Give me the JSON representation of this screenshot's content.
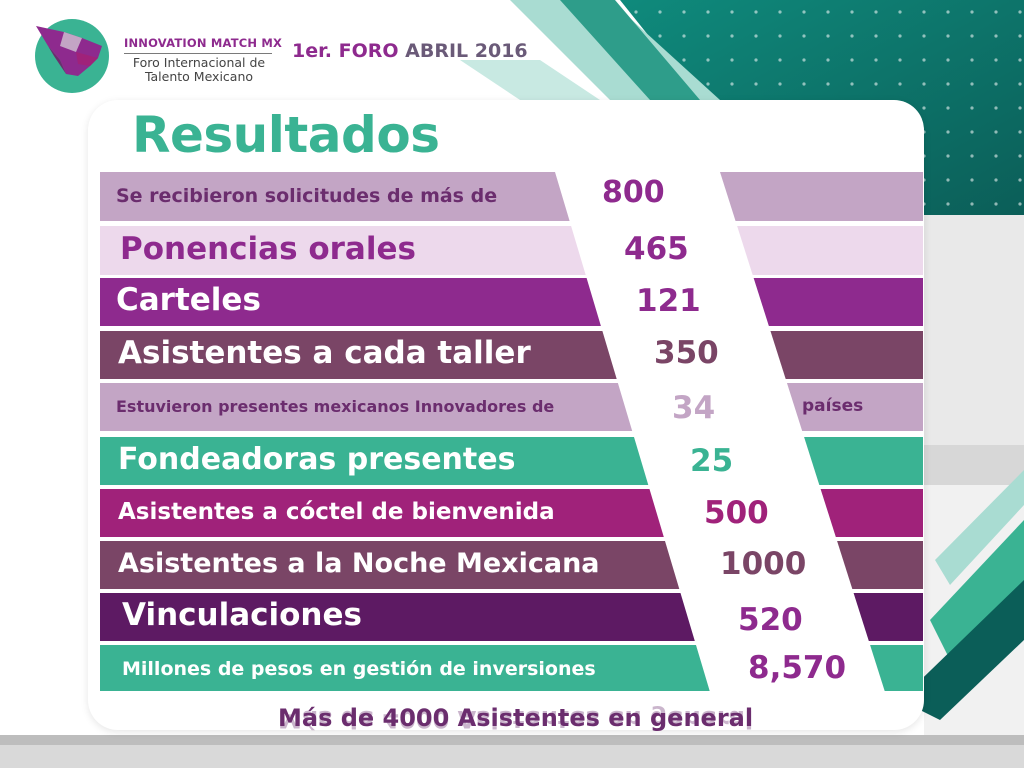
{
  "header": {
    "brand_name": "INNOVATION MATCH MX",
    "brand_subtitle": "Foro Internacional de Talento Mexicano",
    "event_part1": "1er. FORO",
    "event_part2": "ABRIL 2016"
  },
  "title": "Resultados",
  "rows": [
    {
      "label": "Se recibieron solicitudes de más de",
      "value": "800"
    },
    {
      "label": "Ponencias orales",
      "value": "465"
    },
    {
      "label": "Carteles",
      "value": "121"
    },
    {
      "label": "Asistentes a cada taller",
      "value": "350"
    },
    {
      "label": "Estuvieron presentes mexicanos Innovadores de",
      "value": "34",
      "suffix": "países"
    },
    {
      "label": "Fondeadoras presentes",
      "value": "25"
    },
    {
      "label": "Asistentes a cóctel de bienvenida",
      "value": "500"
    },
    {
      "label": "Asistentes a la Noche Mexicana",
      "value": "1000"
    },
    {
      "label": "Vinculaciones",
      "value": "520"
    },
    {
      "label": "Millones de pesos en gestión de inversiones",
      "value": "8,570"
    }
  ],
  "footer": "Más de 4000 Asistentes en general",
  "colors": {
    "title": "#3ab393",
    "teal": "#3ab393",
    "purple": "#8e2a8e",
    "dark_purple": "#6b2d6e",
    "plum": "#7a4566",
    "light_mauve": "#c3a5c5",
    "pale_pink": "#edd9ec",
    "magenta": "#a0227a",
    "deep_purple": "#5d1a63"
  }
}
